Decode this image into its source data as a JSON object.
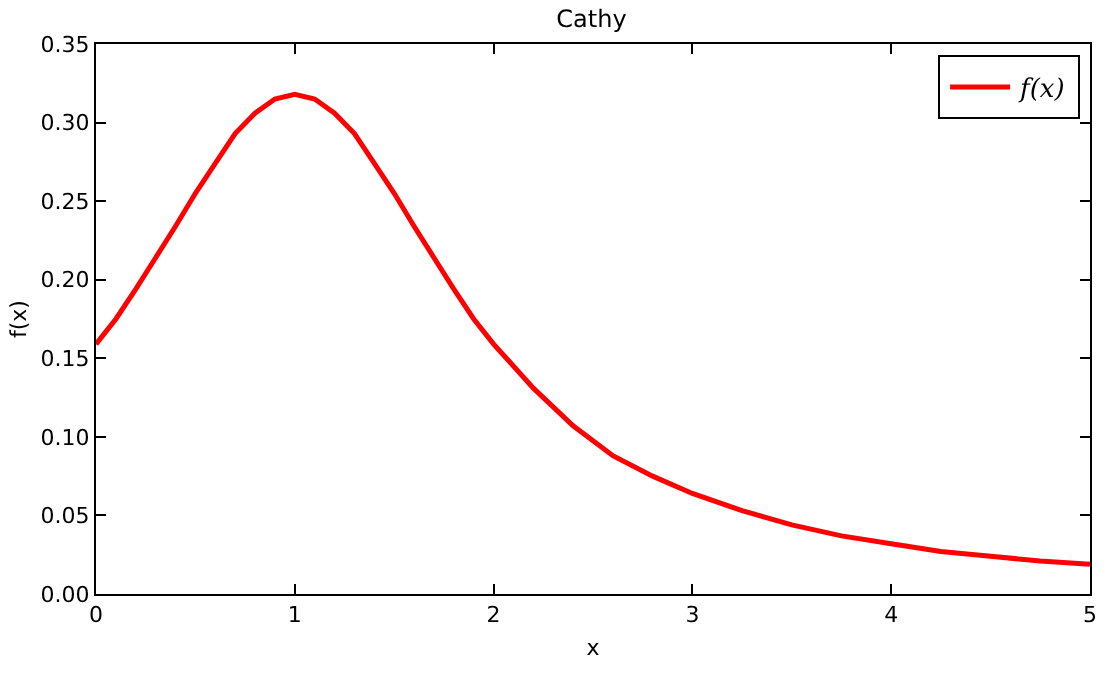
{
  "chart_data": {
    "type": "line",
    "title": "Cathy",
    "xlabel": "x",
    "ylabel": "f(x)",
    "x": [
      0,
      0.1,
      0.2,
      0.3,
      0.4,
      0.5,
      0.6,
      0.7,
      0.8,
      0.9,
      1.0,
      1.1,
      1.2,
      1.3,
      1.4,
      1.5,
      1.6,
      1.7,
      1.8,
      1.9,
      2.0,
      2.2,
      2.4,
      2.6,
      2.8,
      3.0,
      3.25,
      3.5,
      3.75,
      4.0,
      4.25,
      4.5,
      4.75,
      5.0
    ],
    "series": [
      {
        "name": "f(x)",
        "color": "#ff0000",
        "values": [
          0.159,
          0.175,
          0.194,
          0.214,
          0.234,
          0.255,
          0.274,
          0.293,
          0.306,
          0.315,
          0.318,
          0.315,
          0.306,
          0.293,
          0.274,
          0.255,
          0.234,
          0.214,
          0.194,
          0.175,
          0.159,
          0.131,
          0.107,
          0.088,
          0.075,
          0.064,
          0.053,
          0.044,
          0.037,
          0.032,
          0.027,
          0.024,
          0.021,
          0.019
        ]
      }
    ],
    "xlim": [
      0,
      5
    ],
    "xticks": [
      0,
      1,
      2,
      3,
      4,
      5
    ],
    "ylim": [
      0,
      0.35
    ],
    "yticks": [
      {
        "value": 0,
        "label": "0.00"
      },
      {
        "value": 0.05,
        "label": "0.05"
      },
      {
        "value": 0.1,
        "label": "0.10"
      },
      {
        "value": 0.15,
        "label": "0.15"
      },
      {
        "value": 0.2,
        "label": "0.20"
      },
      {
        "value": 0.25,
        "label": "0.25"
      },
      {
        "value": 0.3,
        "label": "0.30"
      },
      {
        "value": 0.35,
        "label": "0.35"
      }
    ],
    "legend": "top right",
    "line_style": "solid"
  }
}
